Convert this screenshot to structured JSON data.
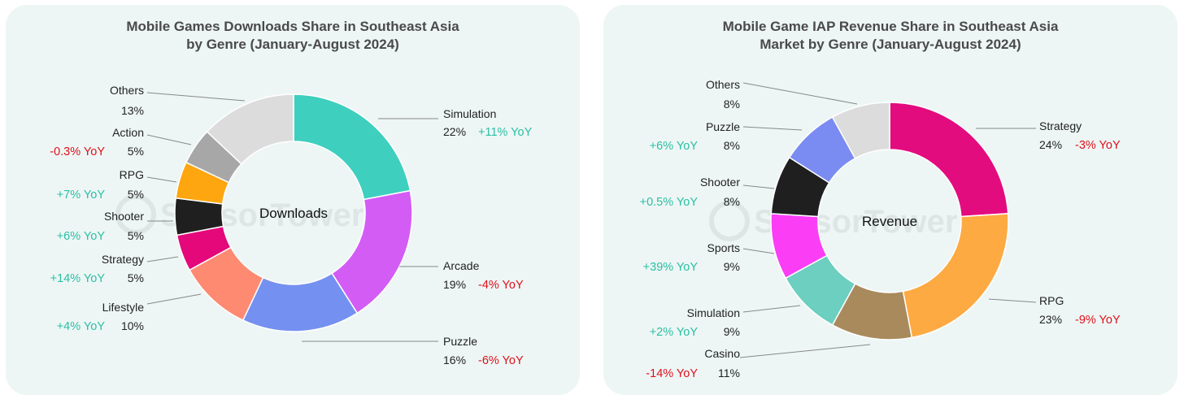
{
  "chart_data": [
    {
      "type": "pie",
      "title": "Mobile Games Downloads Share in Southeast Asia",
      "subtitle": "by Genre (January-August 2024)",
      "center_label": "Downloads",
      "watermark": "SensorTower",
      "slices": [
        {
          "label": "Simulation",
          "value": 22,
          "value_text": "22%",
          "yoy": "+11% YoY",
          "color": "#3ecfbe"
        },
        {
          "label": "Arcade",
          "value": 19,
          "value_text": "19%",
          "yoy": "-4% YoY",
          "color": "#d35cf5"
        },
        {
          "label": "Puzzle",
          "value": 16,
          "value_text": "16%",
          "yoy": "-6% YoY",
          "color": "#7490f0"
        },
        {
          "label": "Lifestyle",
          "value": 10,
          "value_text": "10%",
          "yoy": "+4% YoY",
          "color": "#fe8a72"
        },
        {
          "label": "Strategy",
          "value": 5,
          "value_text": "5%",
          "yoy": "+14% YoY",
          "color": "#e5087a"
        },
        {
          "label": "Shooter",
          "value": 5,
          "value_text": "5%",
          "yoy": "+6% YoY",
          "color": "#1f1f1f"
        },
        {
          "label": "RPG",
          "value": 5,
          "value_text": "5%",
          "yoy": "+7% YoY",
          "color": "#fda60f"
        },
        {
          "label": "Action",
          "value": 5,
          "value_text": "5%",
          "yoy": "-0.3% YoY",
          "color": "#a7a7a7"
        },
        {
          "label": "Others",
          "value": 13,
          "value_text": "13%",
          "yoy": "",
          "color": "#dcdcdc"
        }
      ]
    },
    {
      "type": "pie",
      "title": "Mobile Game IAP Revenue Share in Southeast Asia",
      "subtitle": "Market by Genre (January-August 2024)",
      "center_label": "Revenue",
      "watermark": "SensorTower",
      "slices": [
        {
          "label": "Strategy",
          "value": 24,
          "value_text": "24%",
          "yoy": "-3% YoY",
          "color": "#e30c7f"
        },
        {
          "label": "RPG",
          "value": 23,
          "value_text": "23%",
          "yoy": "-9% YoY",
          "color": "#fdaa42"
        },
        {
          "label": "Casino",
          "value": 11,
          "value_text": "11%",
          "yoy": "-14% YoY",
          "color": "#a98a5d"
        },
        {
          "label": "Simulation",
          "value": 9,
          "value_text": "9%",
          "yoy": "+2% YoY",
          "color": "#6ccfbf"
        },
        {
          "label": "Sports",
          "value": 9,
          "value_text": "9%",
          "yoy": "+39% YoY",
          "color": "#fb3ef5"
        },
        {
          "label": "Shooter",
          "value": 8,
          "value_text": "8%",
          "yoy": "+0.5% YoY",
          "color": "#1f1f1f"
        },
        {
          "label": "Puzzle",
          "value": 8,
          "value_text": "8%",
          "yoy": "+6% YoY",
          "color": "#7a8cf1"
        },
        {
          "label": "Others",
          "value": 8,
          "value_text": "8%",
          "yoy": "",
          "color": "#dcdcdc"
        }
      ]
    }
  ],
  "colors": {
    "positive": "#2bbfa4",
    "negative": "#e0101a",
    "panel": "#edf6f5"
  }
}
